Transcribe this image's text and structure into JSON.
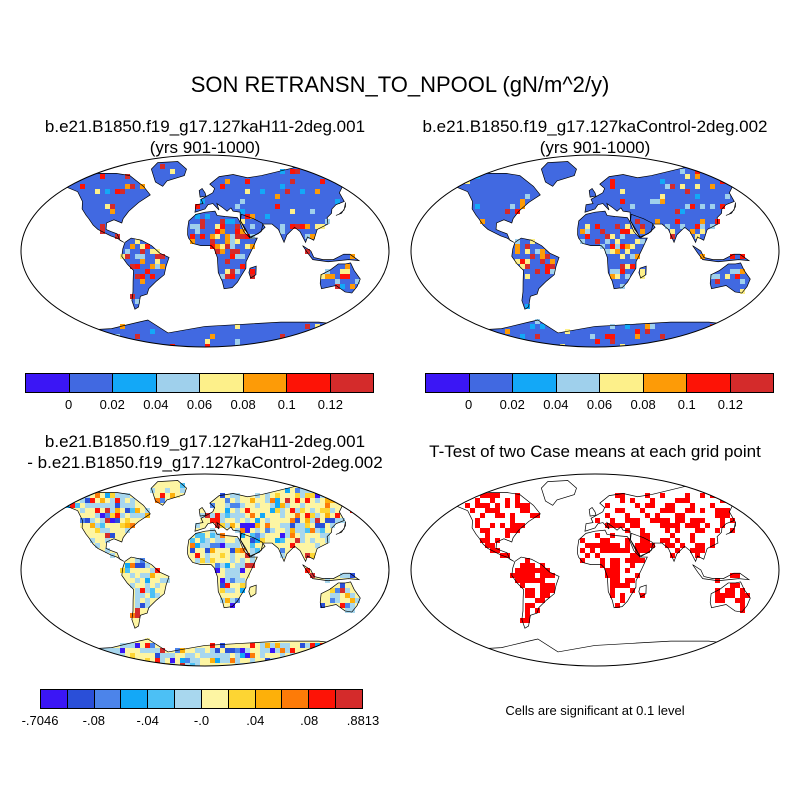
{
  "title": "SON RETRANSN_TO_NPOOL (gN/m^2/y)",
  "panels": {
    "case": {
      "title1": "b.e21.B1850.f19_g17.127kaH11-2deg.001",
      "title2": "(yrs 901-1000)"
    },
    "control": {
      "title1": "b.e21.B1850.f19_g17.127kaControl-2deg.002",
      "title2": "(yrs 901-1000)"
    },
    "diff": {
      "title1": "b.e21.B1850.f19_g17.127kaH11-2deg.001",
      "title2": "- b.e21.B1850.f19_g17.127kaControl-2deg.002"
    },
    "ttest": {
      "title1": "T-Test of two Case means at each grid point",
      "note": "Cells are significant at 0.1 level"
    }
  },
  "colorbar_top": {
    "colors": [
      "#3b16f5",
      "#4169e1",
      "#13a8f7",
      "#9fd0ec",
      "#fdf08a",
      "#fd9b07",
      "#fd1306",
      "#d42b2b"
    ],
    "labels": [
      "0",
      "0.02",
      "0.04",
      "0.06",
      "0.08",
      "0.1",
      "0.12"
    ]
  },
  "colorbar_diff": {
    "colors": [
      "#3b16f5",
      "#2a4fd8",
      "#4c84ea",
      "#13a8f7",
      "#4cc0f5",
      "#a8d7ee",
      "#fdf5a3",
      "#fdd533",
      "#fdb00a",
      "#fd7b08",
      "#fd1306",
      "#d42b2b"
    ],
    "labels": [
      "-.7046",
      "-.08",
      "-.04",
      "-.0",
      ".04",
      ".08",
      ".8813"
    ]
  },
  "map_colors": {
    "ocean": "#ffffff",
    "land_base_top": "#4169e1",
    "land_base_diff": "#fdf5a3",
    "significant": "#ff0000",
    "coastline": "#000000"
  }
}
